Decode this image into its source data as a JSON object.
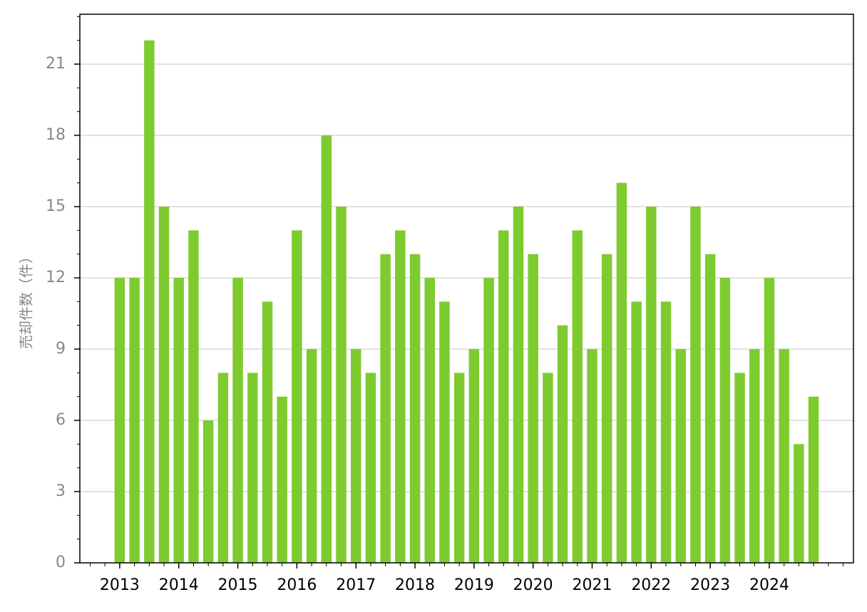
{
  "chart_data": {
    "type": "bar",
    "y_label": "売却件数（件）",
    "categories": [
      "2013",
      null,
      null,
      null,
      "2014",
      null,
      null,
      null,
      "2015",
      null,
      null,
      null,
      "2016",
      null,
      null,
      null,
      "2017",
      null,
      null,
      null,
      "2018",
      null,
      null,
      null,
      "2019",
      null,
      null,
      null,
      "2020",
      null,
      null,
      null,
      "2021",
      null,
      null,
      null,
      "2022",
      null,
      null,
      null,
      "2023",
      null,
      null,
      null,
      "2024",
      null,
      null,
      null
    ],
    "values": [
      12,
      12,
      22,
      15,
      12,
      14,
      6,
      8,
      12,
      8,
      11,
      7,
      14,
      9,
      18,
      15,
      9,
      8,
      13,
      14,
      13,
      12,
      11,
      8,
      9,
      12,
      14,
      15,
      13,
      8,
      10,
      14,
      9,
      13,
      16,
      11,
      15,
      11,
      9,
      15,
      13,
      12,
      8,
      9,
      12,
      9,
      5,
      7
    ],
    "color": "#7ecb30",
    "ylim": [
      0,
      23.1
    ],
    "yticks": [
      0,
      3,
      6,
      9,
      12,
      15,
      18,
      21
    ],
    "grid": true
  }
}
